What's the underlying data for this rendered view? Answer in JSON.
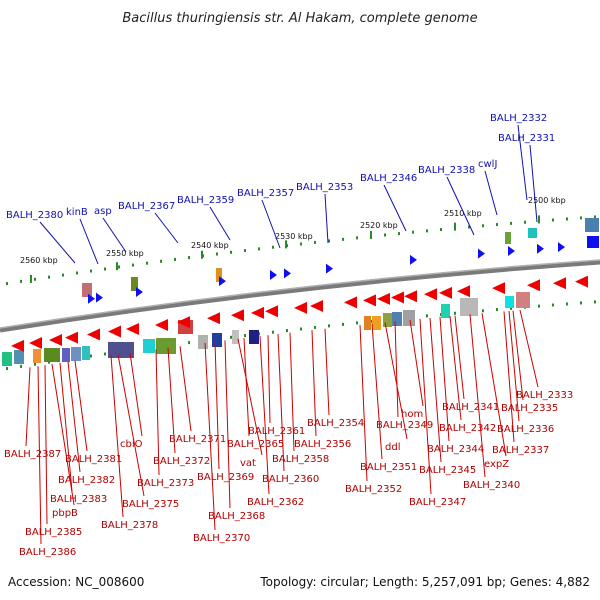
{
  "title": "Bacillus thuringiensis str. Al Hakam, complete genome",
  "accession": "Accession: NC_008600",
  "summary": "Topology: circular; Length: 5,257,091 bp; Genes: 4,882",
  "colors": {
    "forward_gene": "#1010ee",
    "reverse_gene": "#ee0000",
    "blue_leader": "#1010b0",
    "red_leader": "#cc0000",
    "backbone": "#808080",
    "tick": "#2a8a2a"
  },
  "scale_labels": [
    "2500 kbp",
    "2510 kbp",
    "2520 kbp",
    "2530 kbp",
    "2540 kbp",
    "2550 kbp",
    "2560 kbp"
  ],
  "forward_genes": [
    {
      "label": "BALH_2332"
    },
    {
      "label": "BALH_2331"
    },
    {
      "label": "cwlJ"
    },
    {
      "label": "BALH_2338"
    },
    {
      "label": "BALH_2346"
    },
    {
      "label": "BALH_2353"
    },
    {
      "label": "BALH_2357"
    },
    {
      "label": "BALH_2359"
    },
    {
      "label": "BALH_2367"
    },
    {
      "label": "asp"
    },
    {
      "label": "kinB"
    },
    {
      "label": "BALH_2380"
    }
  ],
  "reverse_genes": [
    {
      "label": "BALH_2333"
    },
    {
      "label": "BALH_2335"
    },
    {
      "label": "BALH_2336"
    },
    {
      "label": "BALH_2337"
    },
    {
      "label": "BALH_2341"
    },
    {
      "label": "BALH_2342"
    },
    {
      "label": "expZ"
    },
    {
      "label": "BALH_2340"
    },
    {
      "label": "BALH_2344"
    },
    {
      "label": "BALH_2345"
    },
    {
      "label": "BALH_2347"
    },
    {
      "label": "hom"
    },
    {
      "label": "BALH_2349"
    },
    {
      "label": "ddl"
    },
    {
      "label": "BALH_2351"
    },
    {
      "label": "BALH_2352"
    },
    {
      "label": "BALH_2354"
    },
    {
      "label": "BALH_2356"
    },
    {
      "label": "BALH_2358"
    },
    {
      "label": "BALH_2360"
    },
    {
      "label": "BALH_2361"
    },
    {
      "label": "BALH_2362"
    },
    {
      "label": "BALH_2365"
    },
    {
      "label": "vat"
    },
    {
      "label": "BALH_2368"
    },
    {
      "label": "BALH_2369"
    },
    {
      "label": "BALH_2370"
    },
    {
      "label": "BALH_2371"
    },
    {
      "label": "BALH_2372"
    },
    {
      "label": "BALH_2373"
    },
    {
      "label": "cbiO"
    },
    {
      "label": "BALH_2375"
    },
    {
      "label": "BALH_2378"
    },
    {
      "label": "BALH_2381"
    },
    {
      "label": "BALH_2382"
    },
    {
      "label": "BALH_2383"
    },
    {
      "label": "pbpB"
    },
    {
      "label": "BALH_2385"
    },
    {
      "label": "BALH_2386"
    },
    {
      "label": "BALH_2387"
    }
  ]
}
